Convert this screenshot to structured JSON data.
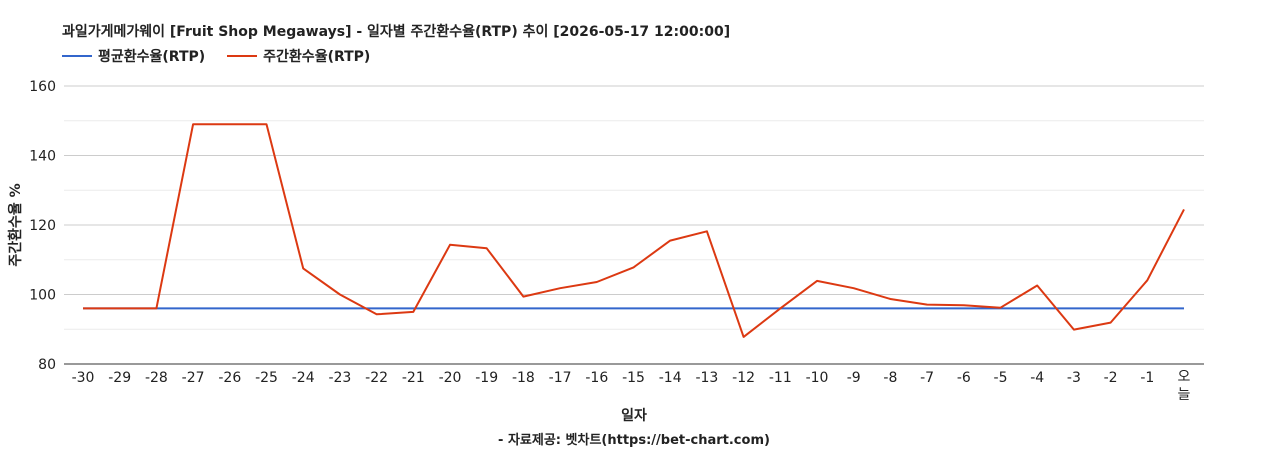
{
  "chart_data": {
    "type": "line",
    "title": "과일가게메가웨이 [Fruit Shop Megaways] - 일자별 주간환수율(RTP) 추이 [2026-05-17 12:00:00]",
    "xlabel": "일자",
    "ylabel": "주간환수율 %",
    "ylim": [
      80,
      160
    ],
    "yticks": [
      80,
      100,
      120,
      140,
      160
    ],
    "categories": [
      "-30",
      "-29",
      "-28",
      "-27",
      "-26",
      "-25",
      "-24",
      "-23",
      "-22",
      "-21",
      "-20",
      "-19",
      "-18",
      "-17",
      "-16",
      "-15",
      "-14",
      "-13",
      "-12",
      "-11",
      "-10",
      "-9",
      "-8",
      "-7",
      "-6",
      "-5",
      "-4",
      "-3",
      "-2",
      "-1",
      "오늘"
    ],
    "series": [
      {
        "name": "평균환수율(RTP)",
        "color": "#3366cc",
        "values": [
          96,
          96,
          96,
          96,
          96,
          96,
          96,
          96,
          96,
          96,
          96,
          96,
          96,
          96,
          96,
          96,
          96,
          96,
          96,
          96,
          96,
          96,
          96,
          96,
          96,
          96,
          96,
          96,
          96,
          96,
          96
        ]
      },
      {
        "name": "주간환수율(RTP)",
        "color": "#dc3912",
        "values": [
          96,
          96,
          96,
          149,
          149,
          149,
          107.5,
          100,
          94.3,
          95,
          114.3,
          113.3,
          99.4,
          101.8,
          103.6,
          107.8,
          115.5,
          118.2,
          87.8,
          96,
          103.9,
          101.8,
          98.7,
          97.1,
          96.9,
          96.2,
          102.6,
          89.9,
          91.9,
          104.1,
          124.5
        ]
      }
    ],
    "grid": true,
    "legend_position": "top-left"
  },
  "footer": "- 자료제공: 벳차트(https://bet-chart.com)"
}
